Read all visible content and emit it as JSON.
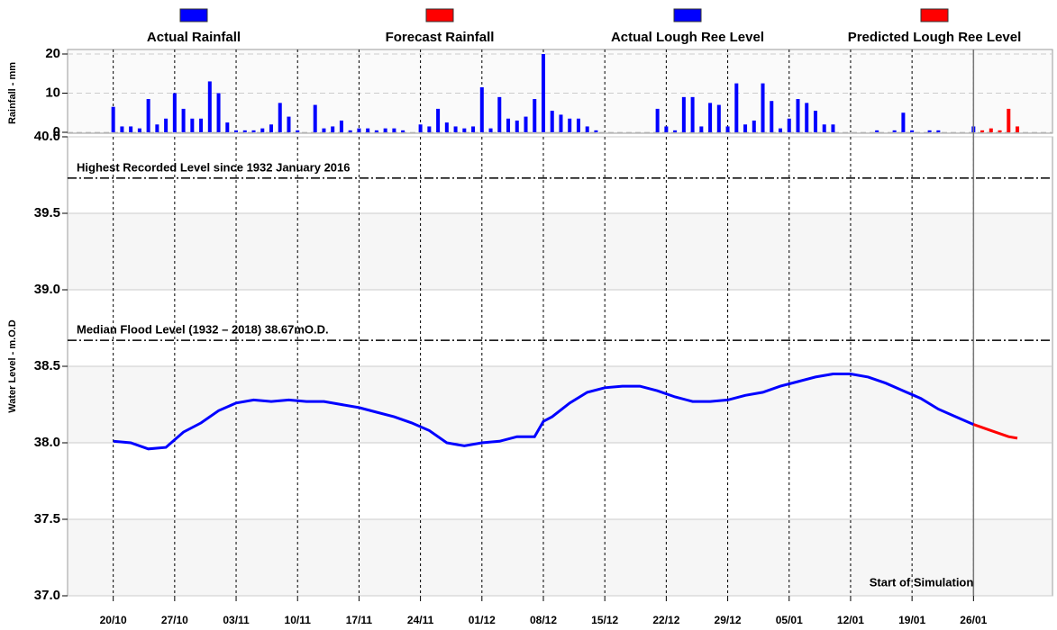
{
  "chart_data": [
    {
      "type": "bar",
      "ylabel": "Rainfall - mm",
      "xlim": [
        -5.2,
        107
      ],
      "ylim": [
        0,
        20
      ],
      "yticks": [
        0,
        10,
        20
      ],
      "grid": true,
      "x": [
        0,
        1,
        2,
        3,
        4,
        5,
        6,
        7,
        8,
        9,
        10,
        11,
        12,
        13,
        14,
        15,
        16,
        17,
        18,
        19,
        20,
        21,
        22,
        23,
        24,
        25,
        26,
        27,
        28,
        29,
        30,
        31,
        32,
        33,
        34,
        35,
        36,
        37,
        38,
        39,
        40,
        41,
        42,
        43,
        44,
        45,
        46,
        47,
        48,
        49,
        50,
        51,
        52,
        53,
        54,
        55,
        56,
        57,
        58,
        59,
        60,
        61,
        62,
        63,
        64,
        65,
        66,
        67,
        68,
        69,
        70,
        71,
        72,
        73,
        74,
        75,
        76,
        77,
        78,
        79,
        80,
        81,
        82,
        83,
        84,
        85,
        86,
        87,
        88,
        89,
        90,
        91,
        92,
        93,
        94,
        95,
        96,
        97,
        98,
        99,
        100,
        101,
        102,
        103
      ],
      "series": [
        {
          "name": "Actual Rainfall",
          "color": "#0000ff",
          "values": [
            6.5,
            1.5,
            1.5,
            1,
            8.5,
            2,
            3.5,
            10,
            6,
            3.5,
            3.5,
            13,
            10,
            2.5,
            0.5,
            0.5,
            0.5,
            1,
            2,
            7.5,
            4,
            0.5,
            null,
            7,
            1,
            1.5,
            3,
            0.5,
            1,
            1,
            0.5,
            1,
            1,
            0.5,
            null,
            2,
            1.5,
            6,
            2.5,
            1.5,
            1,
            1.5,
            11.5,
            1,
            9,
            3.5,
            3,
            4,
            8.5,
            20,
            5.5,
            4.5,
            3.5,
            3.5,
            1.5,
            0.5,
            null,
            null,
            null,
            null,
            null,
            null,
            6,
            1.5,
            0.5,
            9,
            9,
            1.5,
            7.5,
            7,
            1.5,
            12.5,
            2,
            3,
            12.5,
            8,
            1,
            3.5,
            8.5,
            7.5,
            5.5,
            2,
            2,
            null,
            null,
            null,
            null,
            0.5,
            null,
            0.5,
            5,
            0.5,
            null,
            0.5,
            0.5,
            null,
            null,
            null,
            1.5,
            null,
            null,
            null,
            null,
            null
          ]
        },
        {
          "name": "Forecast Rainfall",
          "color": "#ff0000",
          "values": [
            null,
            null,
            null,
            null,
            null,
            null,
            null,
            null,
            null,
            null,
            null,
            null,
            null,
            null,
            null,
            null,
            null,
            null,
            null,
            null,
            null,
            null,
            null,
            null,
            null,
            null,
            null,
            null,
            null,
            null,
            null,
            null,
            null,
            null,
            null,
            null,
            null,
            null,
            null,
            null,
            null,
            null,
            null,
            null,
            null,
            null,
            null,
            null,
            null,
            null,
            null,
            null,
            null,
            null,
            null,
            null,
            null,
            null,
            null,
            null,
            null,
            null,
            null,
            null,
            null,
            null,
            null,
            null,
            null,
            null,
            null,
            null,
            null,
            null,
            null,
            null,
            null,
            null,
            null,
            null,
            null,
            null,
            null,
            null,
            null,
            null,
            null,
            null,
            null,
            null,
            null,
            null,
            null,
            null,
            null,
            null,
            null,
            null,
            null,
            0.5,
            1,
            0.5,
            6,
            1.5
          ]
        }
      ]
    },
    {
      "type": "line",
      "ylabel": "Water Level - m.O.D",
      "xlim": [
        -5.2,
        107
      ],
      "ylim": [
        37,
        40
      ],
      "yticks": [
        {
          "value": 37,
          "label": "37.0"
        },
        37.5,
        {
          "value": 38,
          "label": "38.0"
        },
        38.5,
        {
          "value": 39,
          "label": "39.0"
        },
        39.5,
        {
          "value": 40,
          "label": "40.0"
        }
      ],
      "xticks": [
        {
          "value": 0,
          "label": "20/10"
        },
        {
          "value": 7,
          "label": "27/10"
        },
        {
          "value": 14,
          "label": "03/11"
        },
        {
          "value": 21,
          "label": "10/11"
        },
        {
          "value": 28,
          "label": "17/11"
        },
        {
          "value": 35,
          "label": "24/11"
        },
        {
          "value": 42,
          "label": "01/12"
        },
        {
          "value": 49,
          "label": "08/12"
        },
        {
          "value": 56,
          "label": "15/12"
        },
        {
          "value": 63,
          "label": "22/12"
        },
        {
          "value": 70,
          "label": "29/12"
        },
        {
          "value": 77,
          "label": "05/01"
        },
        {
          "value": 84,
          "label": "12/01"
        },
        {
          "value": 91,
          "label": "19/01"
        },
        {
          "value": 98,
          "label": "26/01"
        }
      ],
      "grid": true,
      "x": [
        0,
        2,
        4,
        6,
        8,
        10,
        12,
        14,
        16,
        18,
        20,
        22,
        24,
        26,
        28,
        30,
        32,
        34,
        36,
        38,
        40,
        42,
        44,
        46,
        48,
        49,
        50,
        52,
        54,
        56,
        58,
        60,
        62,
        64,
        66,
        68,
        70,
        72,
        74,
        76,
        78,
        80,
        82,
        84,
        86,
        88,
        90,
        92,
        94,
        96,
        98,
        100,
        102,
        103
      ],
      "series": [
        {
          "name": "Actual Lough Ree Level",
          "color": "#0000ff",
          "values": [
            38.01,
            38.0,
            37.96,
            37.97,
            38.07,
            38.13,
            38.21,
            38.26,
            38.28,
            38.27,
            38.28,
            38.27,
            38.27,
            38.25,
            38.23,
            38.2,
            38.17,
            38.13,
            38.08,
            38.0,
            37.98,
            38.0,
            38.01,
            38.04,
            38.04,
            38.14,
            38.17,
            38.26,
            38.33,
            38.36,
            38.37,
            38.37,
            38.34,
            38.3,
            38.27,
            38.27,
            38.28,
            38.31,
            38.33,
            38.37,
            38.4,
            38.43,
            38.45,
            38.45,
            38.43,
            38.39,
            38.34,
            38.29,
            38.22,
            38.17,
            38.12,
            null,
            null,
            null
          ]
        },
        {
          "name": "Predicted Lough Ree Level",
          "color": "#ff0000",
          "values": [
            null,
            null,
            null,
            null,
            null,
            null,
            null,
            null,
            null,
            null,
            null,
            null,
            null,
            null,
            null,
            null,
            null,
            null,
            null,
            null,
            null,
            null,
            null,
            null,
            null,
            null,
            null,
            null,
            null,
            null,
            null,
            null,
            null,
            null,
            null,
            null,
            null,
            null,
            null,
            null,
            null,
            null,
            null,
            null,
            null,
            null,
            null,
            null,
            null,
            null,
            38.12,
            38.08,
            38.04,
            38.03
          ]
        }
      ],
      "reference_lines": [
        {
          "value": 39.73,
          "label": "Highest Recorded Level since 1932 January 2016"
        },
        {
          "value": 38.67,
          "label": "Median Flood Level (1932 – 2018) 38.67mO.D."
        }
      ],
      "annotations": [
        {
          "x": 98,
          "label": "Start of Simulation"
        }
      ]
    }
  ]
}
